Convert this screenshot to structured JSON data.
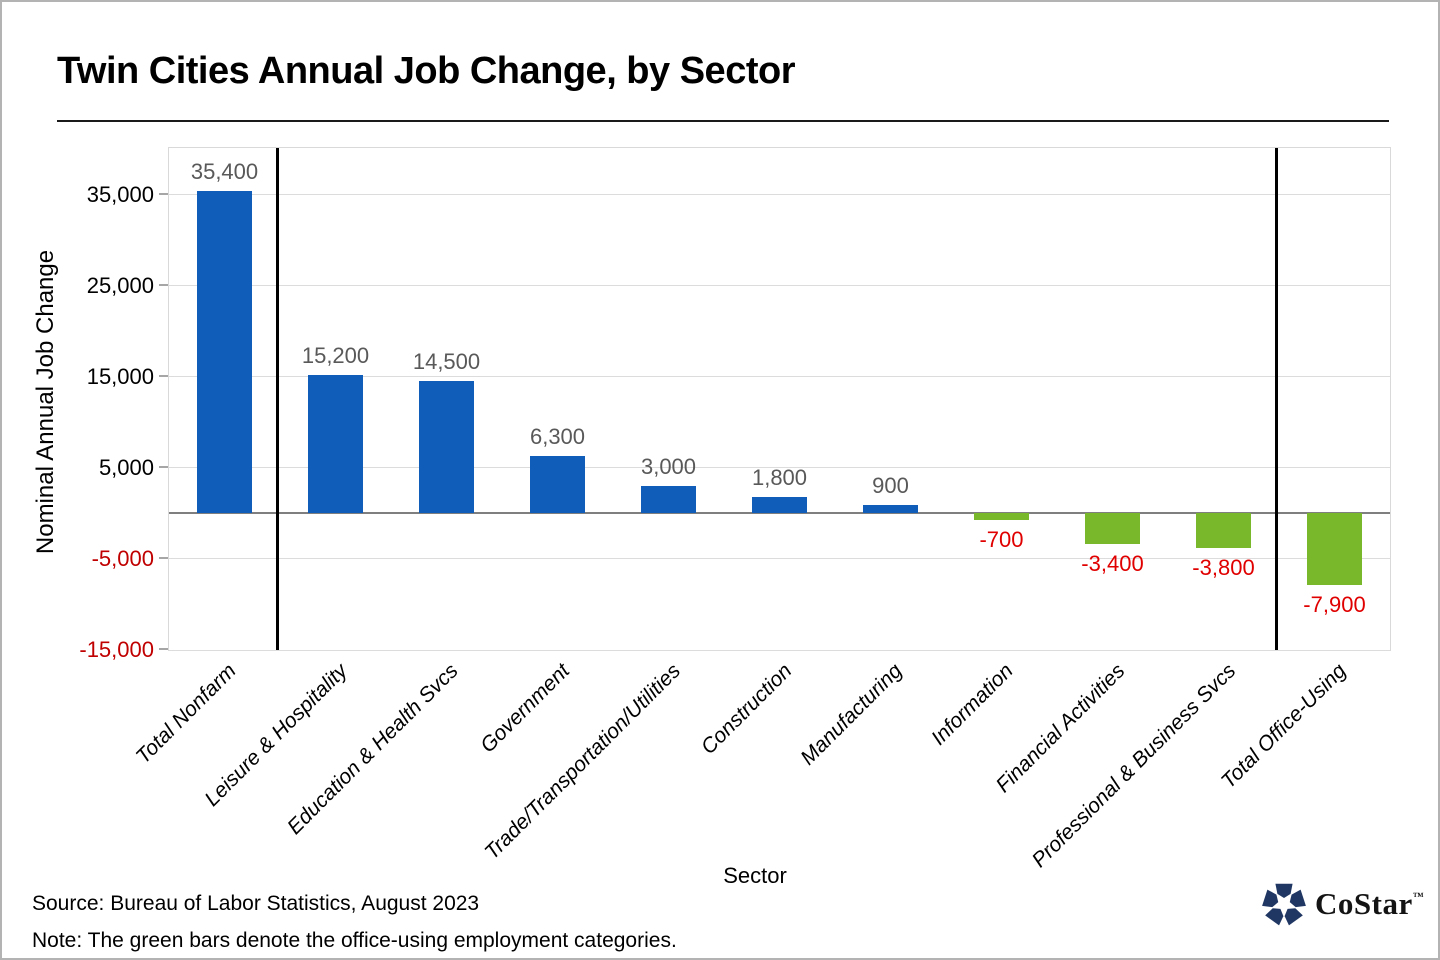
{
  "title": "Twin Cities Annual Job Change, by Sector",
  "chart_data": {
    "type": "bar",
    "title": "Twin Cities Annual Job Change, by Sector",
    "xlabel": "Sector",
    "ylabel": "Nominal Annual Job Change",
    "categories": [
      "Total Nonfarm",
      "Leisure & Hospitality",
      "Education & Health Svcs",
      "Government",
      "Trade/Transportation/Utilities",
      "Construction",
      "Manufacturing",
      "Information",
      "Financial Activities",
      "Professional & Business Svcs",
      "Total Office-Using"
    ],
    "values": [
      35400,
      15200,
      14500,
      6300,
      3000,
      1800,
      900,
      -700,
      -3400,
      -3800,
      -7900
    ],
    "value_labels": [
      "35,400",
      "15,200",
      "14,500",
      "6,300",
      "3,000",
      "1,800",
      "900",
      "-700",
      "-3,400",
      "-3,800",
      "-7,900"
    ],
    "office_using": [
      false,
      false,
      false,
      false,
      false,
      false,
      false,
      true,
      true,
      true,
      true
    ],
    "ylim": [
      -15000,
      40150
    ],
    "ytick_values": [
      35000,
      25000,
      15000,
      5000,
      -5000,
      -15000
    ],
    "ytick_labels": [
      "35,000",
      "25,000",
      "15,000",
      "5,000",
      "-5,000",
      "-15,000"
    ],
    "grid": true,
    "legend": false,
    "separators_after_category": [
      0,
      9
    ],
    "colors": {
      "bar_positive": "#0F5DB8",
      "bar_office_using": "#7AB82B",
      "data_label_positive": "#595959",
      "data_label_negative": "#E00000",
      "ytick_positive": "#000000",
      "ytick_negative": "#C00000",
      "gridline": "#DCDCDC",
      "zero_line": "#7F7F7F"
    }
  },
  "footer": {
    "source": "Source: Bureau of Labor Statistics, August  2023",
    "note": "Note: The green bars denote the office-using employment  categories."
  },
  "logo": {
    "text": "CoStar",
    "tm": "™",
    "color": "#203763"
  }
}
